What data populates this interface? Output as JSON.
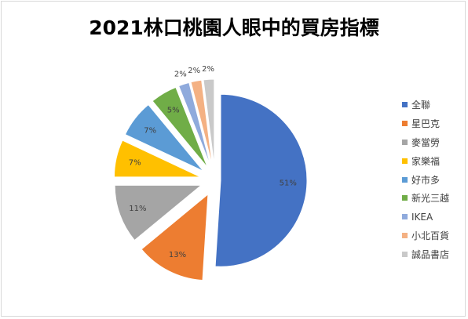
{
  "chart_data": {
    "type": "pie",
    "title": "2021林口桃園人眼中的買房指標",
    "categories": [
      "全聯",
      "星巴克",
      "麥當勞",
      "家樂福",
      "好市多",
      "新光三越",
      "IKEA",
      "小北百貨",
      "誠品書店"
    ],
    "values": [
      51,
      13,
      11,
      7,
      7,
      5,
      2,
      2,
      2
    ],
    "value_labels": [
      "51%",
      "13%",
      "11%",
      "7%",
      "7%",
      "5%",
      "2%",
      "2%",
      "2%"
    ],
    "colors": [
      "#4472c4",
      "#ed7d31",
      "#a5a5a5",
      "#ffc000",
      "#5b9bd5",
      "#70ad47",
      "#8faadc",
      "#f4b183",
      "#c9c9c9"
    ],
    "exploded": true,
    "legend_position": "right"
  }
}
